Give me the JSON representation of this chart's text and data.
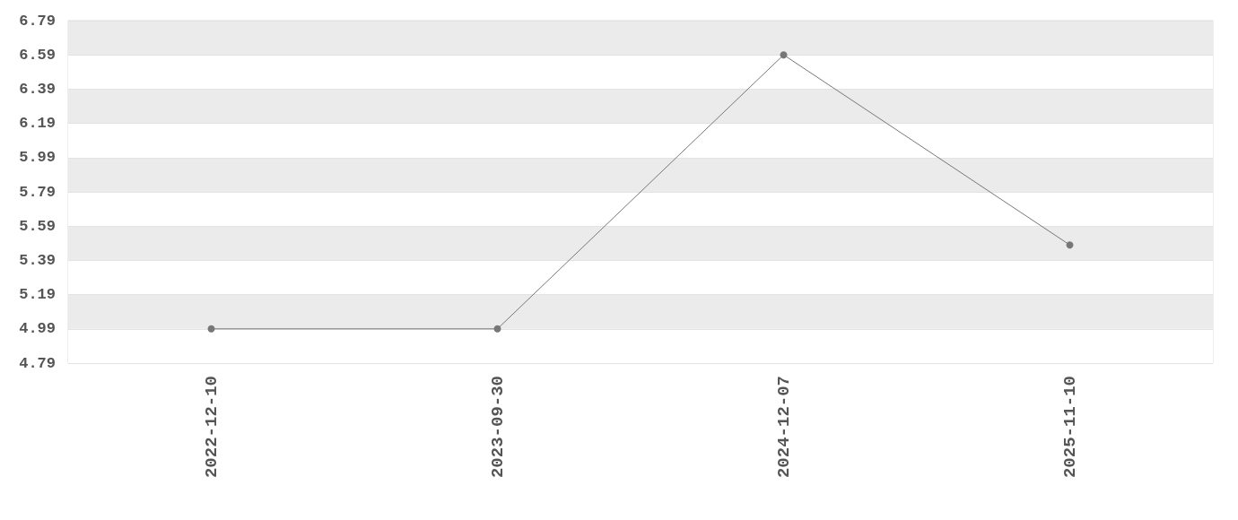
{
  "chart_data": {
    "type": "line",
    "categories": [
      "2022-12-10",
      "2023-09-30",
      "2024-12-07",
      "2025-11-10"
    ],
    "series": [
      {
        "color": "#777777",
        "values": [
          4.99,
          4.99,
          6.59,
          5.48
        ]
      }
    ],
    "ylim": [
      4.79,
      6.79
    ],
    "yticks": [
      4.79,
      4.99,
      5.19,
      5.39,
      5.59,
      5.79,
      5.99,
      6.19,
      6.39,
      6.59,
      6.79
    ],
    "grid": "y",
    "marker": "circle",
    "line_style": "solid"
  }
}
